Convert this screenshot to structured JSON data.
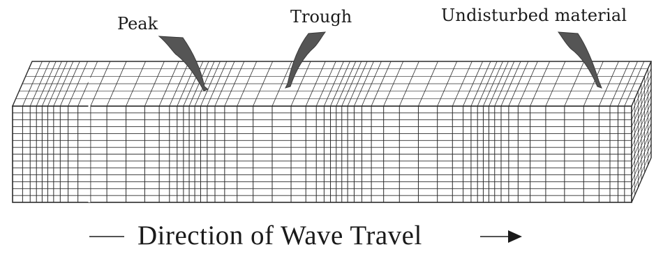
{
  "labels": {
    "peak": "Peak",
    "trough": "Trough",
    "undisturbed": "Undisturbed material"
  },
  "caption": "Direction of Wave Travel",
  "colors": {
    "ink": "#1a1a1a",
    "grid": "#333333",
    "arrow_fill": "#555555",
    "background": "#ffffff"
  }
}
